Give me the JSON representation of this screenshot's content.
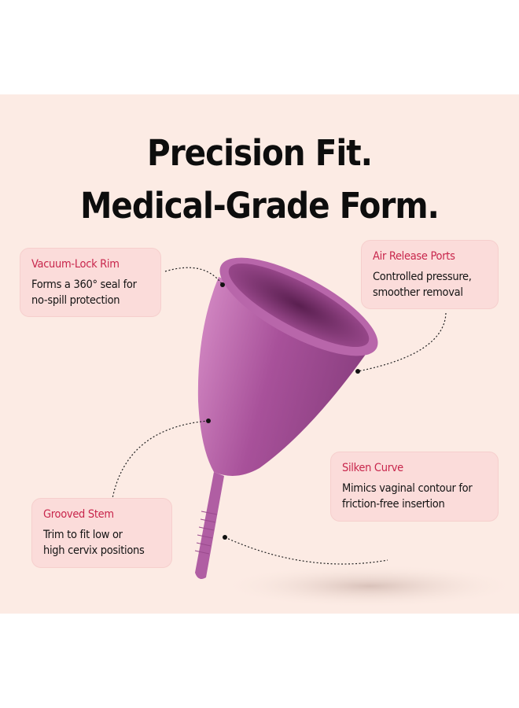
{
  "title": {
    "line1": "Precision Fit.",
    "line2": "Medical-Grade Form."
  },
  "callouts": [
    {
      "heading": "Vacuum-Lock Rim",
      "text1": "Forms a 360° seal for",
      "text2": "no-spill protection"
    },
    {
      "heading": "Air Release Ports",
      "text1": "Controlled pressure,",
      "text2": "smoother removal"
    },
    {
      "heading": "Silken Curve",
      "text1": "Mimics vaginal contour for",
      "text2": "friction-free insertion"
    },
    {
      "heading": "Grooved Stem",
      "text1": "Trim to fit low or",
      "text2": "high cervix positions"
    }
  ],
  "colors": {
    "background": "#fcebe4",
    "accent": "#c8264c",
    "product": "#a8519a",
    "box": "#fbdcda"
  }
}
